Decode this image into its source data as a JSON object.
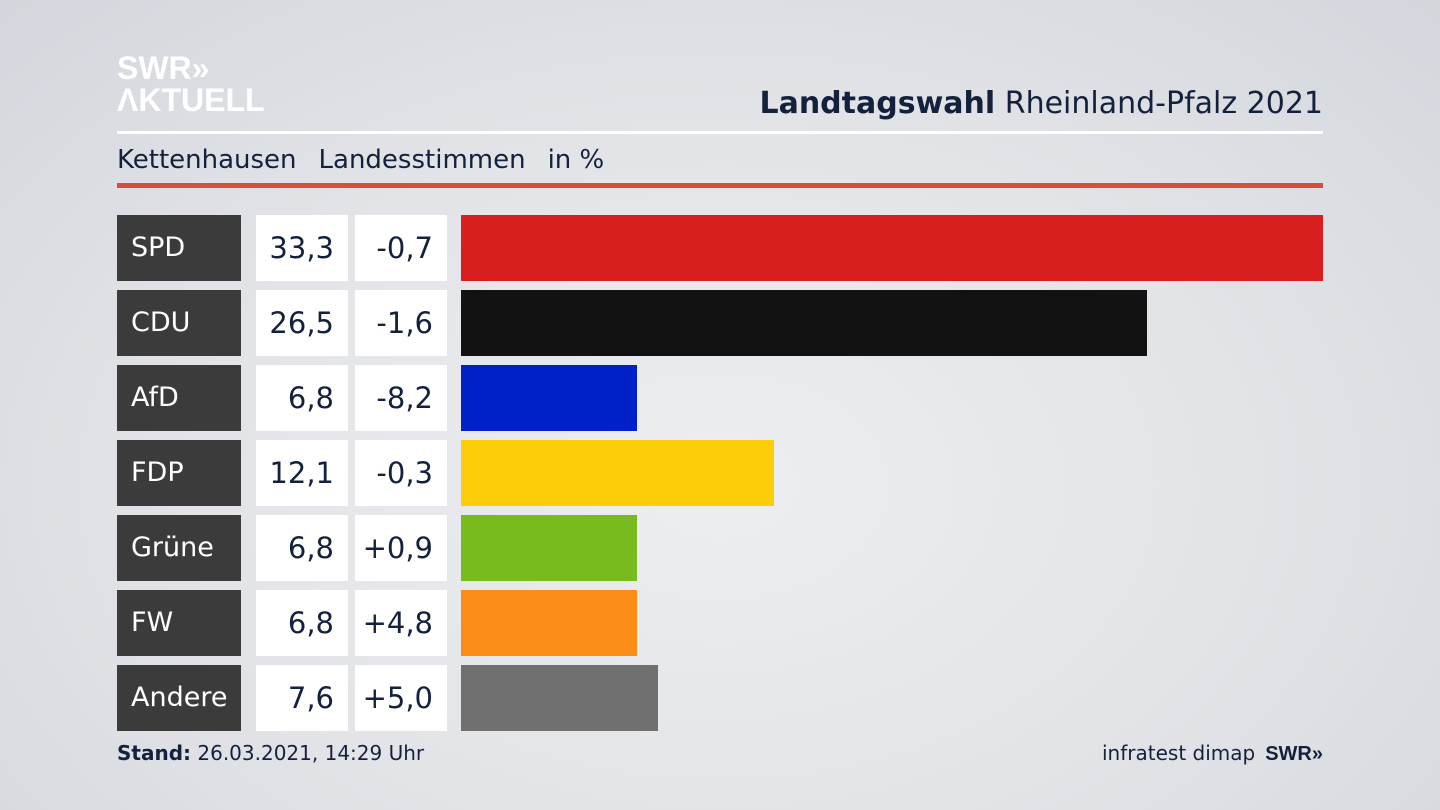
{
  "header": {
    "logo_line1": "SWR»",
    "logo_line2": "ΛKTUELL",
    "title_bold": "Landtagswahl",
    "title_rest": " Rheinland-Pfalz 2021"
  },
  "subtitle": {
    "place": "Kettenhausen",
    "type": "Landesstimmen",
    "unit": "in %"
  },
  "chart_data": {
    "type": "bar",
    "title": "Landtagswahl Rheinland-Pfalz 2021",
    "xlabel": "",
    "ylabel": "in %",
    "categories": [
      "SPD",
      "CDU",
      "AfD",
      "FDP",
      "Grüne",
      "FW",
      "Andere"
    ],
    "values": [
      33.3,
      26.5,
      6.8,
      12.1,
      6.8,
      6.8,
      7.6
    ],
    "values_label": [
      "33,3",
      "26,5",
      "6,8",
      "12,1",
      "6,8",
      "6,8",
      "7,6"
    ],
    "diff_label": [
      "-0,7",
      "-1,6",
      "-8,2",
      "-0,3",
      "+0,9",
      "+4,8",
      "+5,0"
    ],
    "colors": [
      "#d71f1f",
      "#121212",
      "#0021c8",
      "#fdcd0a",
      "#78bb1e",
      "#fb8c17",
      "#707071"
    ],
    "xlim": [
      0,
      33.3
    ]
  },
  "footer": {
    "stand_label": "Stand:",
    "stand_value": " 26.03.2021, 14:29 Uhr",
    "source": "infratest dimap",
    "brand": "SWR»"
  }
}
